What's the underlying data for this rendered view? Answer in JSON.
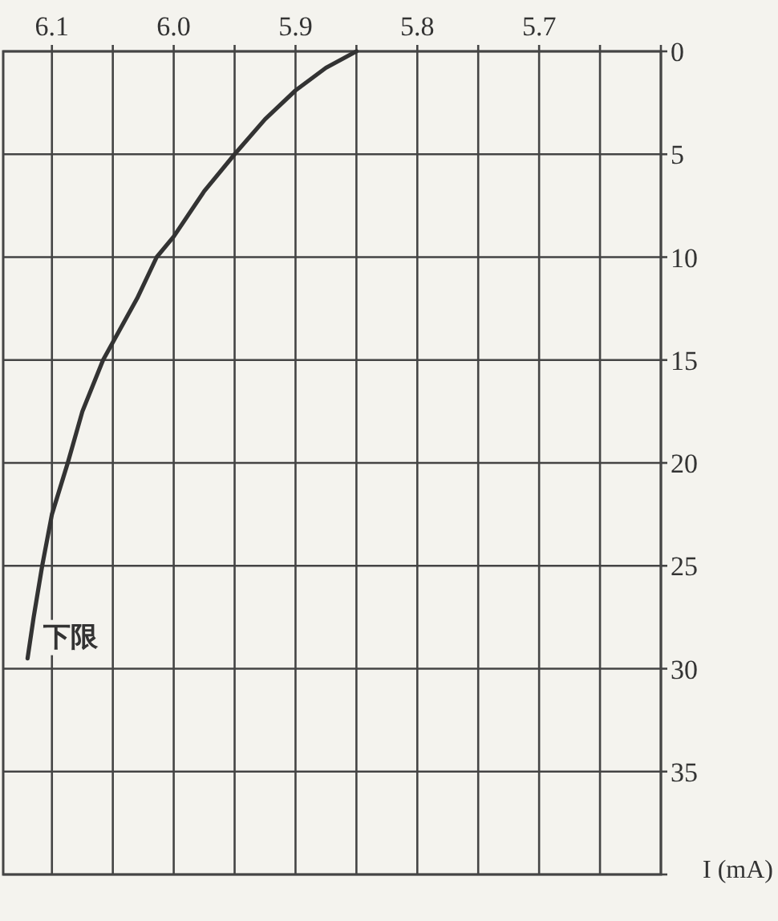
{
  "chart_data": {
    "type": "line",
    "x": [
      5.85,
      5.875,
      5.9,
      5.925,
      5.95,
      5.975,
      6.0,
      6.014,
      6.03,
      6.058,
      6.075,
      6.087,
      6.1,
      6.108,
      6.115,
      6.12
    ],
    "series": [
      {
        "color": "#333333",
        "values": [
          0,
          0.8,
          1.9,
          3.3,
          5,
          6.8,
          9,
          10,
          12,
          15,
          17.5,
          20,
          22.5,
          25,
          27.5,
          29.5
        ]
      }
    ],
    "xlim": [
      6.14,
      5.6
    ],
    "xticks": [
      6.1,
      {
        "value": 6.05,
        "label": null
      },
      {
        "value": 6.0,
        "label": "6.0"
      },
      {
        "value": 5.95,
        "label": null
      },
      5.9,
      {
        "value": 5.85,
        "label": null
      },
      5.8,
      {
        "value": 5.75,
        "label": null
      },
      5.7,
      {
        "value": 5.65,
        "label": null
      },
      {
        "value": 5.6,
        "label": null
      }
    ],
    "ylim": [
      40,
      0
    ],
    "yticks": [
      0,
      5,
      10,
      15,
      20,
      25,
      30,
      35,
      {
        "value": 40,
        "label": null
      }
    ],
    "ylabel": "I (mA)",
    "grid": true,
    "annotations": [
      {
        "text": "下限",
        "x": 6.12,
        "y": 29.5
      }
    ]
  }
}
